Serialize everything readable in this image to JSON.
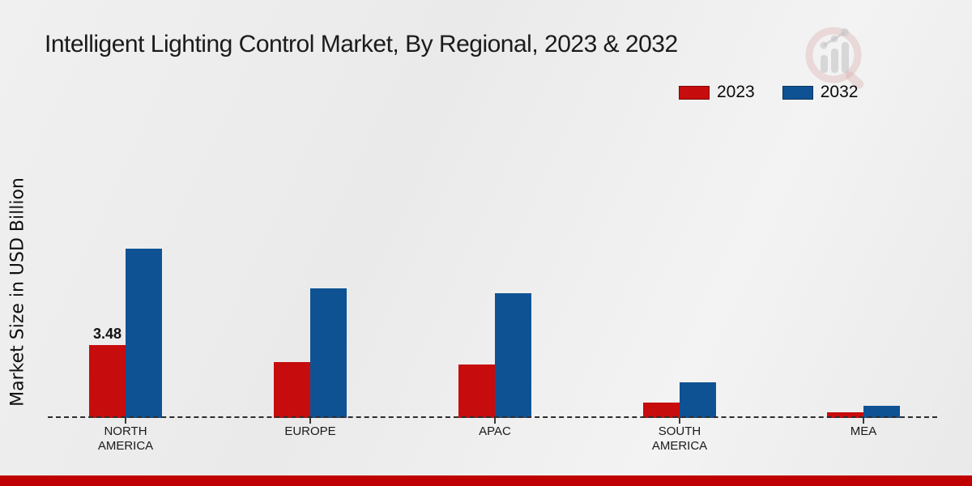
{
  "title": "Intelligent Lighting Control Market, By Regional, 2023 & 2032",
  "y_axis_label": "Market Size in USD Billion",
  "legend": [
    {
      "label": "2023",
      "color": "#c60c0c"
    },
    {
      "label": "2032",
      "color": "#0f5294"
    }
  ],
  "footer_bar_color": "#c00000",
  "watermark_icon": "magnifier-bar-chart-logo",
  "chart_data": {
    "type": "bar",
    "title": "Intelligent Lighting Control Market, By Regional, 2023 & 2032",
    "xlabel": "",
    "ylabel": "Market Size in USD Billion",
    "categories": [
      "NORTH AMERICA",
      "EUROPE",
      "APAC",
      "SOUTH AMERICA",
      "MEA"
    ],
    "series": [
      {
        "name": "2023",
        "color": "#c60c0c",
        "values": [
          3.48,
          2.67,
          2.55,
          0.73,
          0.27
        ]
      },
      {
        "name": "2032",
        "color": "#0f5294",
        "values": [
          8.08,
          6.19,
          5.95,
          1.7,
          0.58
        ]
      }
    ],
    "data_labels": [
      {
        "series": "2023",
        "category": "NORTH AMERICA",
        "label": "3.48"
      }
    ],
    "ylim": [
      0,
      8.5
    ],
    "grid": false,
    "baseline_style": "dashed",
    "legend_position": "top-right"
  }
}
